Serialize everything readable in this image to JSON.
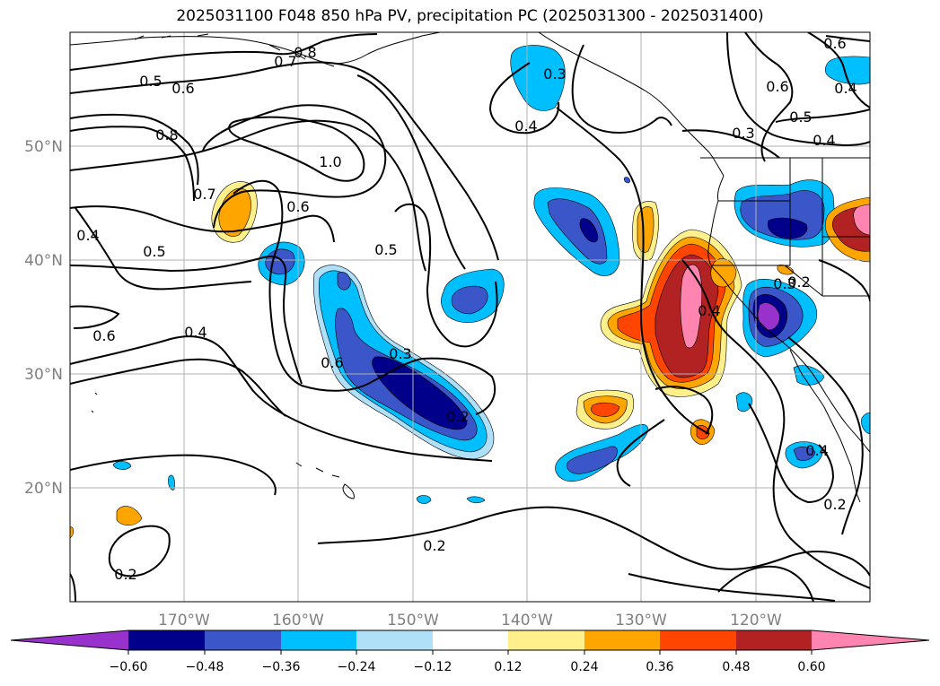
{
  "title": "2025031100 F048 850 hPa PV, precipitation PC (2025031300 - 2025031400)",
  "map": {
    "lat_labels": [
      "50°N",
      "40°N",
      "30°N",
      "20°N"
    ],
    "lon_labels": [
      "170°W",
      "160°W",
      "150°W",
      "140°W",
      "130°W",
      "120°W"
    ],
    "grid_color": "#b0b0b0",
    "contour_labels": [
      "0.7",
      "0.8",
      "0.5",
      "0.6",
      "0.8",
      "1.0",
      "0.7",
      "0.6",
      "0.4",
      "0.5",
      "0.5",
      "0.6",
      "0.4",
      "0.6",
      "0.3",
      "0.3",
      "0.2",
      "0.3",
      "0.4",
      "0.6",
      "0.4",
      "0.5",
      "0.4",
      "0.6",
      "0.3",
      "0.4",
      "0.2",
      "0.4",
      "0.2",
      "0.2",
      "0.2"
    ]
  },
  "colorbar": {
    "ticks": [
      "−0.60",
      "−0.48",
      "−0.36",
      "−0.24",
      "−0.12",
      "0.12",
      "0.24",
      "0.36",
      "0.48",
      "0.60"
    ],
    "colors": [
      "#9932cc",
      "#00008b",
      "#3a56c8",
      "#00bfff",
      "#b0e0f8",
      "#ffffff",
      "#fff08c",
      "#ffa500",
      "#ff4500",
      "#b22222",
      "#ff85b0"
    ]
  }
}
